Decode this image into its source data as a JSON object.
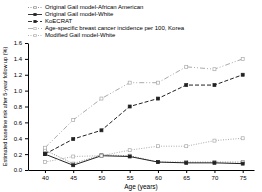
{
  "chart_data": {
    "type": "line",
    "xlabel": "Age (years)",
    "ylabel": "Estimated baseline risk after 5-year follow up (%)",
    "x": [
      40,
      45,
      50,
      55,
      60,
      65,
      70,
      75
    ],
    "xlim": [
      37,
      77
    ],
    "xticks": [
      40,
      45,
      50,
      55,
      60,
      65,
      70,
      75
    ],
    "ylim": [
      0.0,
      1.6
    ],
    "yticks": [
      {
        "value": 0,
        "label": "0.0"
      },
      0.2,
      0.4,
      0.6,
      0.8,
      {
        "value": 1,
        "label": "1.0"
      },
      1.2,
      1.4,
      1.6
    ],
    "grid": false,
    "legend": "upper left",
    "series": [
      {
        "name": "Original Gail model-African American",
        "color": "#888888",
        "line_style": "dotted",
        "marker": "square-open",
        "values": [
          0.25,
          0.08,
          0.19,
          0.18,
          0.1,
          0.1,
          0.1,
          0.1
        ]
      },
      {
        "name": "Original Gail model-White",
        "color": "#222222",
        "line_style": "solid",
        "marker": "square",
        "values": [
          0.2,
          0.06,
          0.18,
          0.17,
          0.1,
          0.09,
          0.09,
          0.08
        ]
      },
      {
        "name": "KoECRAT",
        "color": "#222222",
        "line_style": "dashed",
        "marker": "square",
        "values": [
          0.2,
          0.39,
          0.5,
          0.8,
          0.9,
          1.07,
          1.07,
          1.2
        ]
      },
      {
        "name": "Age-specific breast cancer incidence per 100, Korea",
        "color": "#aaaaaa",
        "line_style": "dash-dot-dot",
        "marker": "square-open",
        "values": [
          0.28,
          0.63,
          0.9,
          1.1,
          1.1,
          1.3,
          1.27,
          1.4
        ]
      },
      {
        "name": "Modified Gail model-White",
        "color": "#aaaaaa",
        "line_style": "dotted",
        "marker": "square-open",
        "values": [
          0.1,
          0.17,
          0.18,
          0.25,
          0.3,
          0.3,
          0.37,
          0.4
        ]
      }
    ]
  }
}
